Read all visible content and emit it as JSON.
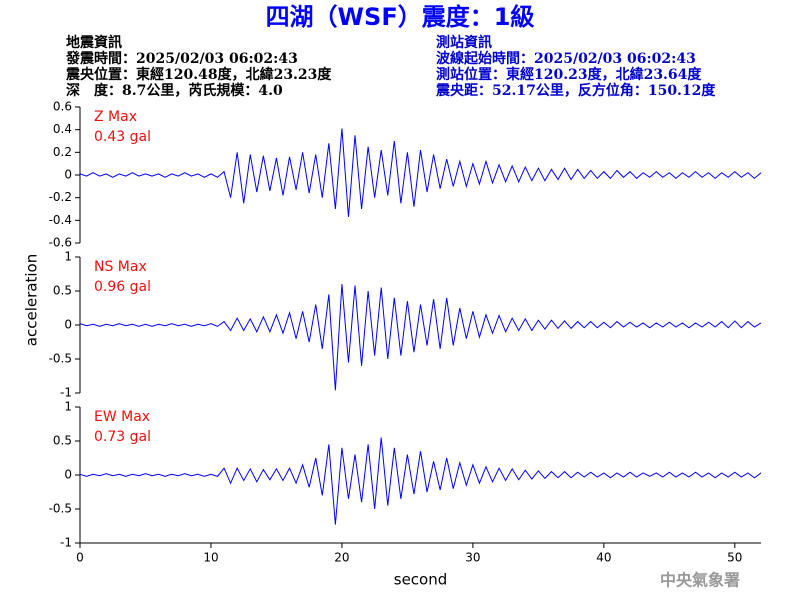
{
  "header": {
    "title": "四湖（WSF）震度：1級",
    "left": [
      "地震資訊",
      "發震時間：2025/02/03 06:02:43",
      "震央位置：東經120.48度，北緯23.23度",
      "深　度：8.7公里，芮氏規模：4.0"
    ],
    "right": [
      "測站資訊",
      "波線起始時間：2025/02/03 06:02:43",
      "測站位置：東經120.23度，北緯23.64度",
      "震央距：52.17公里，反方位角：150.12度"
    ]
  },
  "footer": "中央氣象署",
  "chart_data": [
    {
      "type": "line",
      "annotations": [
        "Z Max",
        "0.43 gal"
      ],
      "color": "#0000ff",
      "xlim": [
        0,
        52
      ],
      "ylim": [
        -0.6,
        0.6
      ],
      "yticks": [
        0.6,
        0.4,
        0.2,
        0,
        -0.2,
        -0.4,
        -0.6
      ],
      "x": [
        0,
        0.5,
        1,
        1.5,
        2,
        2.5,
        3,
        3.5,
        4,
        4.5,
        5,
        5.5,
        6,
        6.5,
        7,
        7.5,
        8,
        8.5,
        9,
        9.5,
        10,
        10.5,
        11,
        11.5,
        12,
        12.5,
        13,
        13.5,
        14,
        14.5,
        15,
        15.5,
        16,
        16.5,
        17,
        17.5,
        18,
        18.5,
        19,
        19.5,
        20,
        20.5,
        21,
        21.5,
        22,
        22.5,
        23,
        23.5,
        24,
        24.5,
        25,
        25.5,
        26,
        26.5,
        27,
        27.5,
        28,
        28.5,
        29,
        29.5,
        30,
        30.5,
        31,
        31.5,
        32,
        32.5,
        33,
        33.5,
        34,
        34.5,
        35,
        35.5,
        36,
        36.5,
        37,
        37.5,
        38,
        38.5,
        39,
        39.5,
        40,
        40.5,
        41,
        41.5,
        42,
        42.5,
        43,
        43.5,
        44,
        44.5,
        45,
        45.5,
        46,
        46.5,
        47,
        47.5,
        48,
        48.5,
        49,
        49.5,
        50,
        50.5,
        51,
        51.5,
        52
      ],
      "series": [
        {
          "values": [
            0.01,
            -0.01,
            0.02,
            -0.01,
            0.01,
            -0.02,
            0.01,
            -0.01,
            0.02,
            -0.01,
            0.01,
            -0.01,
            0.01,
            -0.02,
            0.01,
            -0.01,
            0.02,
            -0.01,
            0.01,
            -0.02,
            0.01,
            -0.02,
            0.03,
            -0.2,
            0.2,
            -0.25,
            0.18,
            -0.15,
            0.17,
            -0.14,
            0.15,
            -0.18,
            0.16,
            -0.13,
            0.2,
            -0.16,
            0.18,
            -0.2,
            0.28,
            -0.3,
            0.41,
            -0.37,
            0.35,
            -0.3,
            0.25,
            -0.2,
            0.22,
            -0.18,
            0.3,
            -0.25,
            0.2,
            -0.28,
            0.22,
            -0.15,
            0.18,
            -0.12,
            0.14,
            -0.1,
            0.12,
            -0.1,
            0.1,
            -0.08,
            0.12,
            -0.07,
            0.09,
            -0.06,
            0.08,
            -0.06,
            0.07,
            -0.05,
            0.06,
            -0.05,
            0.05,
            -0.04,
            0.06,
            -0.04,
            0.05,
            -0.03,
            0.04,
            -0.03,
            0.03,
            -0.03,
            0.04,
            -0.02,
            0.03,
            -0.03,
            0.02,
            -0.02,
            0.03,
            -0.02,
            0.02,
            -0.03,
            0.02,
            -0.02,
            0.03,
            -0.02,
            0.02,
            -0.03,
            0.02,
            -0.02,
            0.03,
            -0.02,
            0.02,
            -0.03,
            0.02
          ]
        }
      ]
    },
    {
      "type": "line",
      "annotations": [
        "NS Max",
        "0.96 gal"
      ],
      "color": "#0000ff",
      "ylabel": "acceleration",
      "xlim": [
        0,
        52
      ],
      "ylim": [
        -1,
        1
      ],
      "yticks": [
        1,
        0.5,
        0,
        -0.5,
        -1
      ],
      "x": [
        0,
        0.5,
        1,
        1.5,
        2,
        2.5,
        3,
        3.5,
        4,
        4.5,
        5,
        5.5,
        6,
        6.5,
        7,
        7.5,
        8,
        8.5,
        9,
        9.5,
        10,
        10.5,
        11,
        11.5,
        12,
        12.5,
        13,
        13.5,
        14,
        14.5,
        15,
        15.5,
        16,
        16.5,
        17,
        17.5,
        18,
        18.5,
        19,
        19.5,
        20,
        20.5,
        21,
        21.5,
        22,
        22.5,
        23,
        23.5,
        24,
        24.5,
        25,
        25.5,
        26,
        26.5,
        27,
        27.5,
        28,
        28.5,
        29,
        29.5,
        30,
        30.5,
        31,
        31.5,
        32,
        32.5,
        33,
        33.5,
        34,
        34.5,
        35,
        35.5,
        36,
        36.5,
        37,
        37.5,
        38,
        38.5,
        39,
        39.5,
        40,
        40.5,
        41,
        41.5,
        42,
        42.5,
        43,
        43.5,
        44,
        44.5,
        45,
        45.5,
        46,
        46.5,
        47,
        47.5,
        48,
        48.5,
        49,
        49.5,
        50,
        50.5,
        51,
        51.5,
        52
      ],
      "series": [
        {
          "values": [
            0.02,
            -0.01,
            0.01,
            -0.02,
            0.01,
            -0.01,
            0.02,
            -0.01,
            0.01,
            -0.02,
            0.01,
            -0.02,
            0.01,
            -0.01,
            0.02,
            -0.01,
            0.01,
            -0.02,
            0.01,
            -0.01,
            0.02,
            -0.02,
            0.05,
            -0.08,
            0.1,
            -0.08,
            0.09,
            -0.1,
            0.12,
            -0.1,
            0.15,
            -0.12,
            0.18,
            -0.2,
            0.2,
            -0.25,
            0.3,
            -0.35,
            0.45,
            -0.96,
            0.6,
            -0.55,
            0.58,
            -0.6,
            0.5,
            -0.45,
            0.55,
            -0.5,
            0.4,
            -0.45,
            0.35,
            -0.4,
            0.3,
            -0.3,
            0.38,
            -0.35,
            0.4,
            -0.3,
            0.25,
            -0.2,
            0.2,
            -0.18,
            0.15,
            -0.12,
            0.14,
            -0.1,
            0.1,
            -0.08,
            0.09,
            -0.08,
            0.07,
            -0.06,
            0.07,
            -0.05,
            0.06,
            -0.05,
            0.05,
            -0.04,
            0.05,
            -0.04,
            0.04,
            -0.04,
            0.05,
            -0.03,
            0.04,
            -0.03,
            0.03,
            -0.04,
            0.03,
            -0.03,
            0.04,
            -0.03,
            0.03,
            -0.04,
            0.03,
            -0.03,
            0.04,
            -0.03,
            0.05,
            -0.04,
            0.06,
            -0.04,
            0.05,
            -0.03,
            0.03
          ]
        }
      ]
    },
    {
      "type": "line",
      "annotations": [
        "EW Max",
        "0.73 gal"
      ],
      "color": "#0000ff",
      "xlabel": "second",
      "xlim": [
        0,
        52
      ],
      "ylim": [
        -1,
        1
      ],
      "yticks": [
        1,
        0.5,
        0,
        -0.5,
        -1
      ],
      "xticks": [
        0,
        10,
        20,
        30,
        40,
        50
      ],
      "x": [
        0,
        0.5,
        1,
        1.5,
        2,
        2.5,
        3,
        3.5,
        4,
        4.5,
        5,
        5.5,
        6,
        6.5,
        7,
        7.5,
        8,
        8.5,
        9,
        9.5,
        10,
        10.5,
        11,
        11.5,
        12,
        12.5,
        13,
        13.5,
        14,
        14.5,
        15,
        15.5,
        16,
        16.5,
        17,
        17.5,
        18,
        18.5,
        19,
        19.5,
        20,
        20.5,
        21,
        21.5,
        22,
        22.5,
        23,
        23.5,
        24,
        24.5,
        25,
        25.5,
        26,
        26.5,
        27,
        27.5,
        28,
        28.5,
        29,
        29.5,
        30,
        30.5,
        31,
        31.5,
        32,
        32.5,
        33,
        33.5,
        34,
        34.5,
        35,
        35.5,
        36,
        36.5,
        37,
        37.5,
        38,
        38.5,
        39,
        39.5,
        40,
        40.5,
        41,
        41.5,
        42,
        42.5,
        43,
        43.5,
        44,
        44.5,
        45,
        45.5,
        46,
        46.5,
        47,
        47.5,
        48,
        48.5,
        49,
        49.5,
        50,
        50.5,
        51,
        51.5,
        52
      ],
      "series": [
        {
          "values": [
            0.01,
            -0.02,
            0.01,
            -0.01,
            0.02,
            -0.01,
            0.01,
            -0.02,
            0.01,
            -0.01,
            0.02,
            -0.01,
            0.01,
            -0.02,
            0.01,
            -0.01,
            0.02,
            -0.01,
            0.01,
            -0.02,
            0.01,
            -0.02,
            0.1,
            -0.12,
            0.1,
            -0.08,
            0.09,
            -0.1,
            0.08,
            -0.07,
            0.09,
            -0.08,
            0.1,
            -0.12,
            0.15,
            -0.18,
            0.25,
            -0.3,
            0.45,
            -0.73,
            0.4,
            -0.35,
            0.3,
            -0.4,
            0.45,
            -0.5,
            0.55,
            -0.45,
            0.4,
            -0.35,
            0.3,
            -0.28,
            0.35,
            -0.25,
            0.2,
            -0.22,
            0.25,
            -0.2,
            0.18,
            -0.15,
            0.15,
            -0.12,
            0.12,
            -0.1,
            0.1,
            -0.08,
            0.09,
            -0.07,
            0.07,
            -0.06,
            0.06,
            -0.05,
            0.05,
            -0.04,
            0.05,
            -0.04,
            0.04,
            -0.03,
            0.04,
            -0.03,
            0.03,
            -0.04,
            0.03,
            -0.03,
            0.04,
            -0.03,
            0.03,
            -0.02,
            0.03,
            -0.03,
            0.04,
            -0.03,
            0.03,
            -0.03,
            0.04,
            -0.03,
            0.03,
            -0.04,
            0.03,
            -0.03,
            0.04,
            -0.03,
            0.03,
            -0.04,
            0.03
          ]
        }
      ]
    }
  ]
}
